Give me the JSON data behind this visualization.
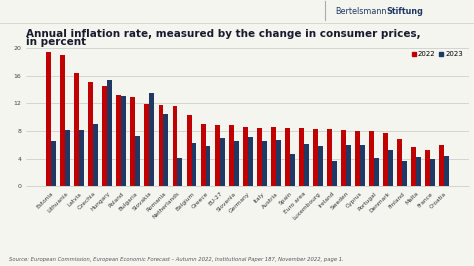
{
  "title_line1": "Annual inflation rate, measured by the change in consumer prices,",
  "title_line2": "in percent",
  "categories": [
    "Estonia",
    "Lithuania",
    "Latvia",
    "Czechia",
    "Hungary",
    "Poland",
    "Bulgaria",
    "Slovakia",
    "Romania",
    "Netherlands",
    "Belgium",
    "Greece",
    "EU-27",
    "Slovenia",
    "Germany",
    "Italy",
    "Austria",
    "Spain",
    "Euro area",
    "Luxembourg",
    "Ireland",
    "Sweden",
    "Cyprus",
    "Portugal",
    "Denmark",
    "Finland",
    "Malta",
    "France",
    "Croatia"
  ],
  "values_2022": [
    19.4,
    19.0,
    16.4,
    15.1,
    14.5,
    13.2,
    12.9,
    11.9,
    11.7,
    11.6,
    10.3,
    9.0,
    8.8,
    8.8,
    8.5,
    8.4,
    8.5,
    8.4,
    8.4,
    8.3,
    8.2,
    8.1,
    8.0,
    8.0,
    7.7,
    6.8,
    5.7,
    5.2,
    6.0
  ],
  "values_2023": [
    6.5,
    8.1,
    8.1,
    9.0,
    15.4,
    13.0,
    7.3,
    13.5,
    10.4,
    4.1,
    6.2,
    5.8,
    7.0,
    6.5,
    7.1,
    6.5,
    6.7,
    4.6,
    6.1,
    5.8,
    3.7,
    6.0,
    5.9,
    4.1,
    5.2,
    3.6,
    4.2,
    4.0,
    4.3
  ],
  "color_2022": "#c00000",
  "color_2023": "#1f3864",
  "background_color": "#f5f5f0",
  "ylim": [
    0,
    20
  ],
  "yticks": [
    0,
    4,
    8,
    12,
    16,
    20
  ],
  "source_text": "Source: European Commission, European Economic Forecast – Autumn 2022, Institutional Paper 187, November 2022, page 1.",
  "logo_normal": "Bertelsmann",
  "logo_bold": "Stiftung",
  "title_fontsize": 7.5,
  "tick_fontsize": 4.2,
  "legend_fontsize": 5.0,
  "source_fontsize": 3.8,
  "bar_width": 0.35
}
